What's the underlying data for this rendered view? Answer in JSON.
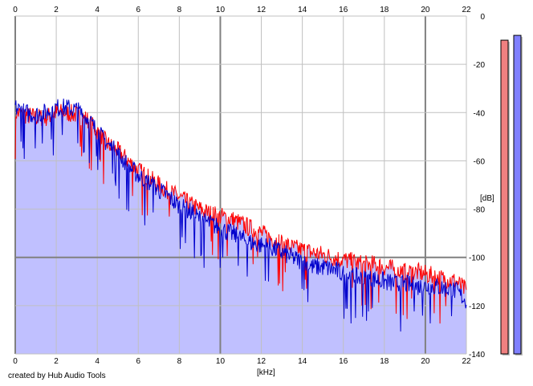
{
  "credit": "created by Hub Audio Tools",
  "chart_data": {
    "type": "area",
    "xlabel": "[kHz]",
    "ylabel": "[dB]",
    "xlim": [
      0,
      22
    ],
    "ylim": [
      -140,
      0
    ],
    "x_ticks": [
      0,
      2,
      4,
      6,
      8,
      10,
      12,
      14,
      16,
      18,
      20,
      22
    ],
    "x_tick_labels": [
      "0",
      "2",
      "4",
      "6",
      "8",
      "10",
      "12",
      "14",
      "16",
      "18",
      "20",
      "22"
    ],
    "y_ticks": [
      0,
      -20,
      -40,
      -60,
      -80,
      -100,
      -120,
      -140
    ],
    "y_tick_labels": [
      "0",
      "-20",
      "-40",
      "-60",
      "-80",
      "-100",
      "-120",
      "-140"
    ],
    "grid": true,
    "colors": {
      "background": "#ffffff",
      "grid_minor": "#c0c0c0",
      "grid_major": "#808080",
      "fill": "#c0c0ff",
      "red_channel": "#ff0000",
      "blue_channel": "#0000cc",
      "meter_red": "#f08080",
      "meter_blue": "#8080ff"
    },
    "series": [
      {
        "color": "#ff0000",
        "x": [
          0,
          0.5,
          1,
          1.5,
          2,
          2.5,
          3,
          3.5,
          4,
          4.5,
          5,
          5.5,
          6,
          6.5,
          7,
          7.5,
          8,
          8.5,
          9,
          9.5,
          10,
          10.5,
          11,
          11.5,
          12,
          12.5,
          13,
          13.5,
          14,
          14.5,
          15,
          15.5,
          16,
          16.5,
          17,
          17.5,
          18,
          18.5,
          19,
          19.5,
          20,
          20.5,
          21,
          21.5,
          22
        ],
        "values": [
          -40,
          -41,
          -42,
          -42,
          -40,
          -40,
          -41,
          -43,
          -48,
          -53,
          -56,
          -60,
          -64,
          -67,
          -70,
          -73,
          -75,
          -78,
          -80,
          -82,
          -83,
          -84,
          -86,
          -88,
          -90,
          -92,
          -94,
          -96,
          -97,
          -98,
          -99,
          -100,
          -101,
          -102,
          -103,
          -103,
          -104,
          -105,
          -106,
          -106,
          -107,
          -108,
          -109,
          -110,
          -114
        ]
      },
      {
        "color": "#0000cc",
        "x": [
          0,
          0.5,
          1,
          1.5,
          2,
          2.5,
          3,
          3.5,
          4,
          4.5,
          5,
          5.5,
          6,
          6.5,
          7,
          7.5,
          8,
          8.5,
          9,
          9.5,
          10,
          10.5,
          11,
          11.5,
          12,
          12.5,
          13,
          13.5,
          14,
          14.5,
          15,
          15.5,
          16,
          16.5,
          17,
          17.5,
          18,
          18.5,
          19,
          19.5,
          20,
          20.5,
          21,
          21.5,
          22
        ],
        "values": [
          -38,
          -40,
          -41,
          -40,
          -38,
          -38,
          -39,
          -42,
          -48,
          -53,
          -57,
          -62,
          -66,
          -69,
          -72,
          -75,
          -79,
          -81,
          -84,
          -86,
          -88,
          -90,
          -92,
          -94,
          -95,
          -96,
          -98,
          -100,
          -102,
          -104,
          -104,
          -105,
          -107,
          -108,
          -109,
          -109,
          -110,
          -111,
          -111,
          -112,
          -112,
          -112,
          -113,
          -114,
          -118
        ]
      }
    ],
    "meters": [
      {
        "color": "#f08080",
        "level_db": -10
      },
      {
        "color": "#8080ff",
        "level_db": -8
      }
    ]
  }
}
